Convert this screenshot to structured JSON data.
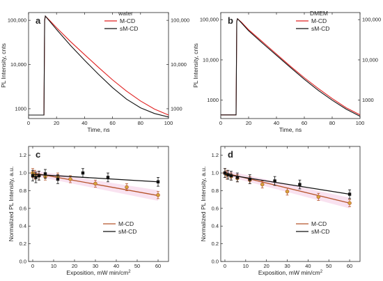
{
  "chart_data": [
    {
      "id": "a",
      "type": "line",
      "panel_label": "a",
      "xlabel": "Time, ns",
      "ylabel": "PL Intensity, cnts",
      "y_scale": "log",
      "xlim": [
        0,
        100
      ],
      "ylim": [
        600,
        150000
      ],
      "x_ticks": [
        "0",
        "20",
        "40",
        "60",
        "80",
        "100"
      ],
      "y_ticks_left": [
        "1000",
        "10,000",
        "100,000"
      ],
      "y_ticks_right": [
        "1000",
        "10,000",
        "100,000"
      ],
      "legend_title": "water",
      "legend_position": "top-right",
      "series": [
        {
          "name": "M-CD",
          "color": "#e02020",
          "x": [
            0,
            11,
            11.5,
            12,
            15,
            20,
            30,
            40,
            50,
            60,
            70,
            80,
            90,
            100
          ],
          "y": [
            720,
            720,
            100000,
            125000,
            100000,
            68000,
            33000,
            16800,
            8600,
            4500,
            2500,
            1500,
            980,
            720
          ]
        },
        {
          "name": "sM-CD",
          "color": "#111111",
          "x": [
            0,
            11,
            11.5,
            12,
            15,
            20,
            30,
            40,
            50,
            60,
            70,
            80,
            90,
            100
          ],
          "y": [
            720,
            720,
            100000,
            125000,
            96000,
            62000,
            27000,
            12500,
            6000,
            3000,
            1650,
            1050,
            780,
            650
          ]
        }
      ]
    },
    {
      "id": "b",
      "type": "line",
      "panel_label": "b",
      "xlabel": "Time, ns",
      "ylabel": "PL Intensity, cnts",
      "y_scale": "log",
      "xlim": [
        0,
        100
      ],
      "ylim": [
        350,
        150000
      ],
      "x_ticks": [
        "0",
        "20",
        "40",
        "60",
        "80",
        "100"
      ],
      "y_ticks_left": [
        "1000",
        "10,000",
        "100,000"
      ],
      "y_ticks_right": [
        "1000",
        "10,000",
        "100,000"
      ],
      "legend_title": "DMEM",
      "legend_position": "top-right",
      "series": [
        {
          "name": "M-CD",
          "color": "#e02020",
          "x": [
            0,
            11,
            11.5,
            12,
            15,
            20,
            30,
            40,
            50,
            60,
            70,
            80,
            90,
            100
          ],
          "y": [
            430,
            430,
            90000,
            105000,
            85000,
            56000,
            28000,
            14000,
            7000,
            3600,
            1950,
            1100,
            650,
            430
          ]
        },
        {
          "name": "sM-CD",
          "color": "#111111",
          "x": [
            0,
            11,
            11.5,
            12,
            15,
            20,
            30,
            40,
            50,
            60,
            70,
            80,
            90,
            100
          ],
          "y": [
            430,
            430,
            90000,
            105000,
            82000,
            53000,
            26000,
            13000,
            6500,
            3300,
            1750,
            1000,
            600,
            400
          ]
        }
      ]
    },
    {
      "id": "c",
      "type": "scatter",
      "panel_label": "c",
      "xlabel": "Exposition, mW min/cm",
      "xlabel_sup": "2",
      "ylabel": "Normalized PL Intensity, a.u.",
      "xlim": [
        -2,
        65
      ],
      "ylim": [
        0.0,
        1.3
      ],
      "x_ticks": [
        0,
        10,
        20,
        30,
        40,
        50,
        60
      ],
      "y_ticks": [
        "0.0",
        "0.2",
        "0.4",
        "0.6",
        "0.8",
        "1.0",
        "1.2"
      ],
      "legend_position": "bottom-left",
      "series": [
        {
          "name": "M-CD",
          "color": "#b5532a",
          "x": [
            0,
            1,
            3,
            6,
            12,
            18,
            30,
            45,
            60
          ],
          "y": [
            1.0,
            0.98,
            0.97,
            0.96,
            0.96,
            0.93,
            0.88,
            0.84,
            0.75
          ],
          "err": [
            0.05,
            0.05,
            0.05,
            0.04,
            0.04,
            0.04,
            0.04,
            0.04,
            0.04
          ],
          "fit": [
            1.0,
            0.745
          ]
        },
        {
          "name": "sM-CD",
          "color": "#111111",
          "x": [
            0,
            1.5,
            3,
            6,
            12,
            24,
            36,
            60
          ],
          "y": [
            0.97,
            0.95,
            0.97,
            0.99,
            0.93,
            1.0,
            0.95,
            0.9
          ],
          "err": [
            0.06,
            0.06,
            0.05,
            0.05,
            0.05,
            0.05,
            0.05,
            0.05
          ],
          "fit": [
            0.985,
            0.9
          ]
        }
      ]
    },
    {
      "id": "d",
      "type": "scatter",
      "panel_label": "d",
      "xlabel": "Exposition, mW min/cm",
      "xlabel_sup": "2",
      "ylabel": "Normalized PL Intensity, a.u.",
      "xlim": [
        -2,
        65
      ],
      "ylim": [
        0.0,
        1.3
      ],
      "x_ticks": [
        0,
        10,
        20,
        30,
        40,
        50,
        60
      ],
      "y_ticks": [
        "0.0",
        "0.2",
        "0.4",
        "0.6",
        "0.8",
        "1.0",
        "1.2"
      ],
      "legend_position": "bottom-right",
      "series": [
        {
          "name": "M-CD",
          "color": "#b5532a",
          "x": [
            0,
            1,
            3,
            6,
            12,
            18,
            30,
            45,
            60
          ],
          "y": [
            1.0,
            0.98,
            0.96,
            0.94,
            0.92,
            0.87,
            0.79,
            0.73,
            0.66
          ],
          "err": [
            0.05,
            0.05,
            0.04,
            0.04,
            0.04,
            0.04,
            0.04,
            0.04,
            0.04
          ],
          "fit": [
            1.0,
            0.66
          ]
        },
        {
          "name": "sM-CD",
          "color": "#111111",
          "x": [
            0,
            1.5,
            3,
            6,
            12,
            24,
            36,
            60
          ],
          "y": [
            1.0,
            0.98,
            0.97,
            0.95,
            0.93,
            0.91,
            0.87,
            0.76
          ],
          "err": [
            0.05,
            0.05,
            0.05,
            0.05,
            0.05,
            0.05,
            0.05,
            0.05
          ],
          "fit": [
            0.985,
            0.76
          ]
        }
      ]
    }
  ]
}
